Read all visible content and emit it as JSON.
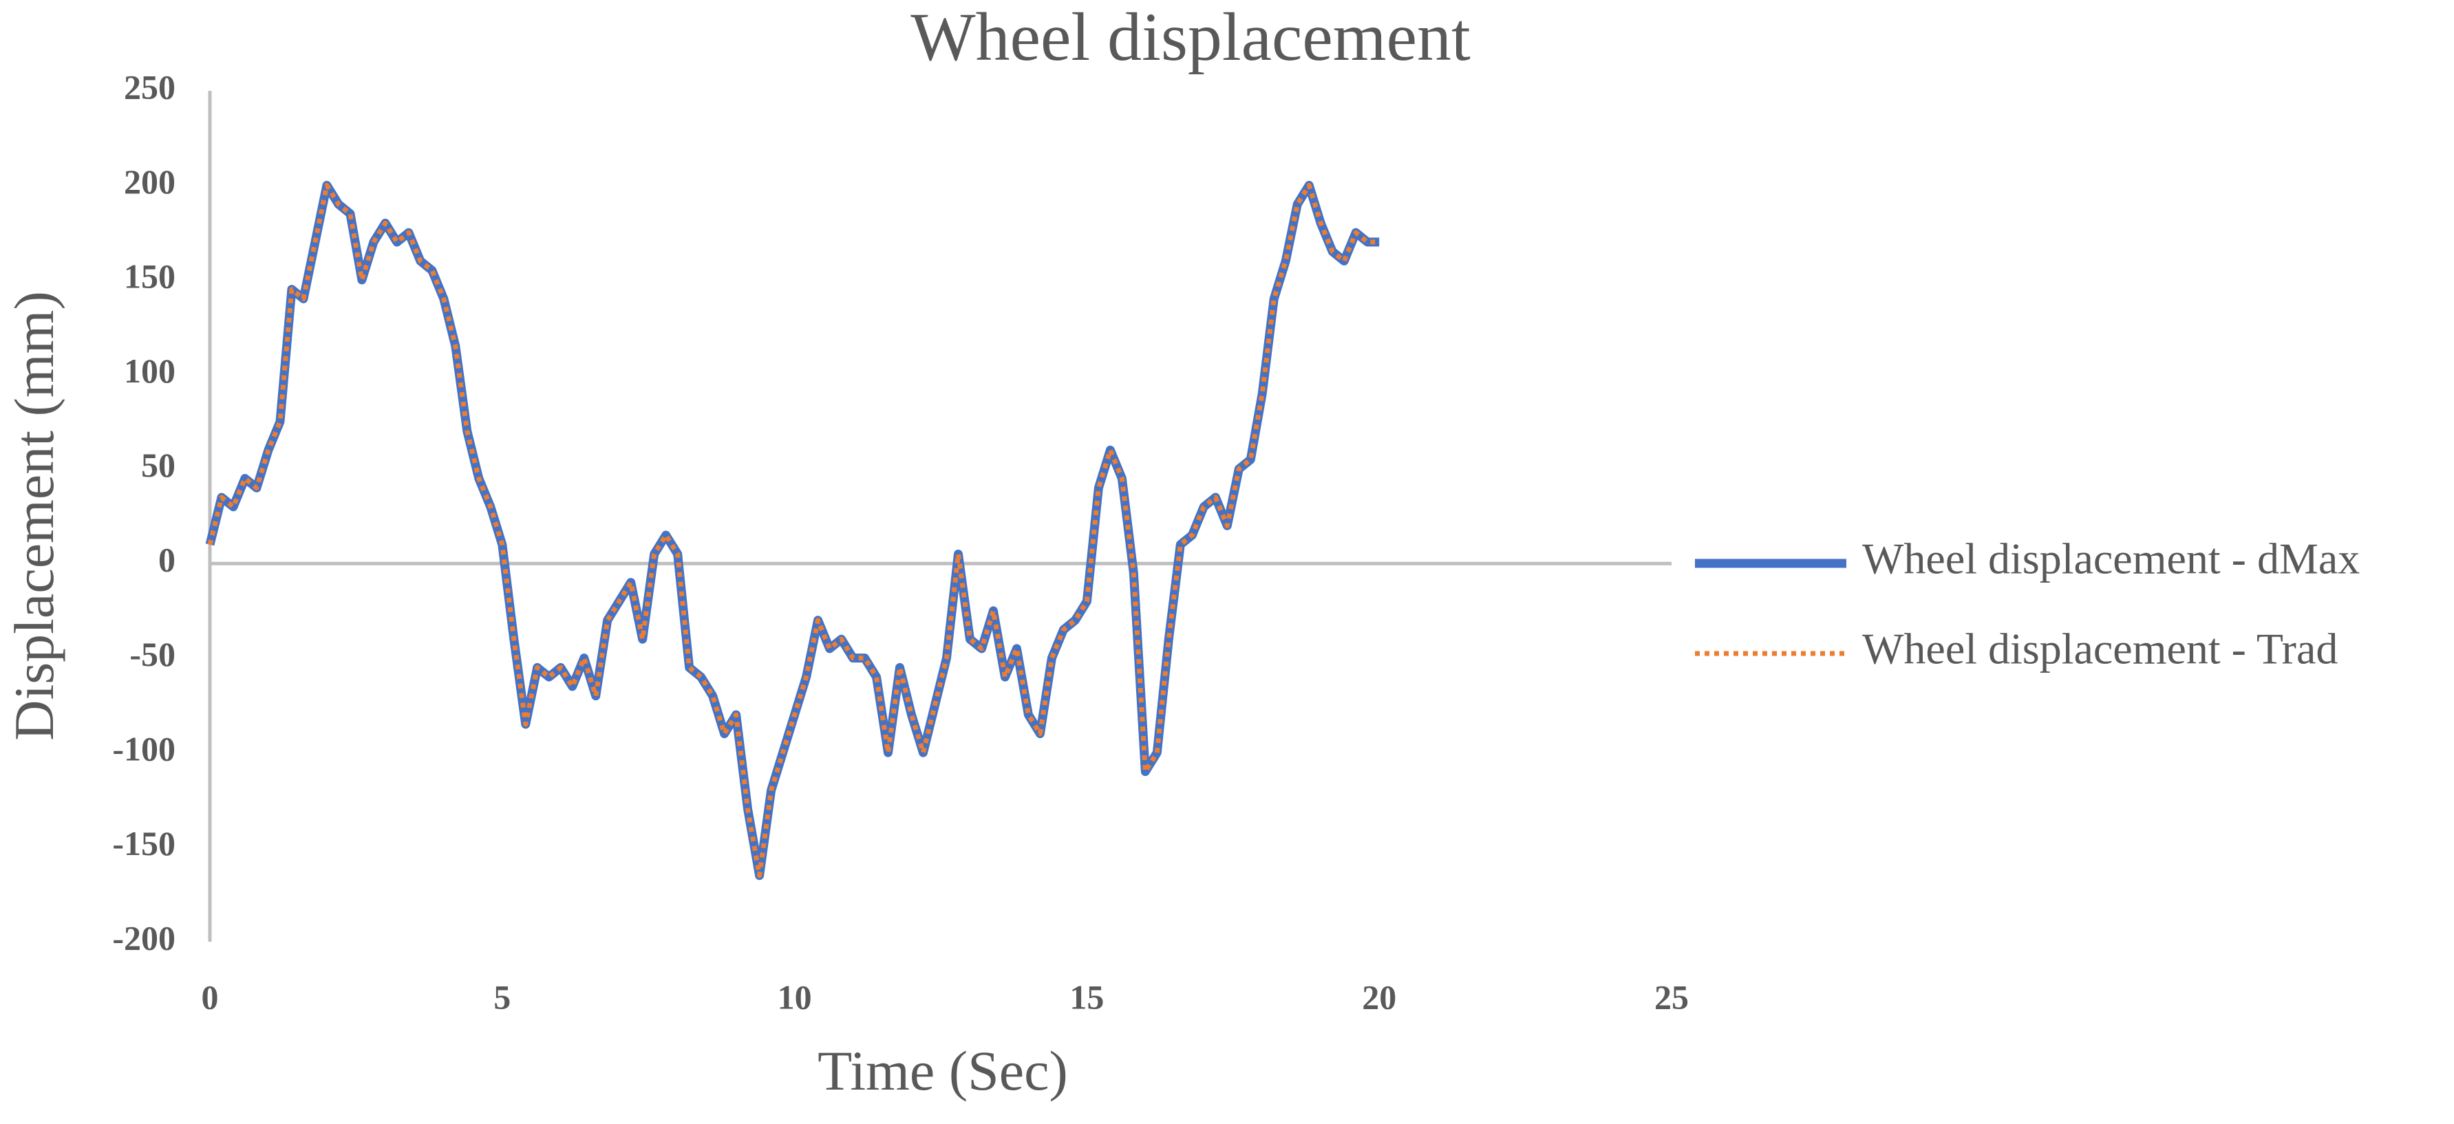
{
  "chart_data": {
    "type": "line",
    "title": "Wheel displacement",
    "x_label": "Time (Sec)",
    "y_label": "Displacement (mm)",
    "x": [
      0,
      0.2,
      0.4,
      0.6,
      0.8,
      1,
      1.2,
      1.4,
      1.6,
      1.8,
      2,
      2.2,
      2.4,
      2.6,
      2.8,
      3,
      3.2,
      3.4,
      3.6,
      3.8,
      4,
      4.2,
      4.4,
      4.6,
      4.8,
      5,
      5.2,
      5.4,
      5.6,
      5.8,
      6,
      6.2,
      6.4,
      6.6,
      6.8,
      7,
      7.2,
      7.4,
      7.6,
      7.8,
      8,
      8.2,
      8.4,
      8.6,
      8.8,
      9,
      9.2,
      9.4,
      9.6,
      9.8,
      10,
      10.2,
      10.4,
      10.6,
      10.8,
      11,
      11.2,
      11.4,
      11.6,
      11.8,
      12,
      12.2,
      12.4,
      12.6,
      12.8,
      13,
      13.2,
      13.4,
      13.6,
      13.8,
      14,
      14.2,
      14.4,
      14.6,
      14.8,
      15,
      15.2,
      15.4,
      15.6,
      15.8,
      16,
      16.2,
      16.4,
      16.6,
      16.8,
      17,
      17.2,
      17.4,
      17.6,
      17.8,
      18,
      18.2,
      18.4,
      18.6,
      18.8,
      19,
      19.2,
      19.4,
      19.6,
      19.8,
      20
    ],
    "series": [
      {
        "name": "Wheel displacement - dMax",
        "color": "#4472c4",
        "dash": false,
        "values": [
          10,
          35,
          30,
          45,
          40,
          60,
          75,
          145,
          140,
          170,
          200,
          190,
          185,
          150,
          170,
          180,
          170,
          175,
          160,
          155,
          140,
          115,
          70,
          45,
          30,
          10,
          -40,
          -85,
          -55,
          -60,
          -55,
          -65,
          -50,
          -70,
          -30,
          -20,
          -10,
          -40,
          5,
          15,
          5,
          -55,
          -60,
          -70,
          -90,
          -80,
          -130,
          -165,
          -120,
          -100,
          -80,
          -60,
          -30,
          -45,
          -40,
          -50,
          -50,
          -60,
          -100,
          -55,
          -80,
          -100,
          -75,
          -50,
          5,
          -40,
          -45,
          -25,
          -60,
          -45,
          -80,
          -90,
          -50,
          -35,
          -30,
          -20,
          40,
          60,
          45,
          -5,
          -110,
          -100,
          -40,
          10,
          15,
          30,
          35,
          20,
          50,
          55,
          90,
          140,
          160,
          190,
          200,
          180,
          165,
          160,
          175,
          170,
          170
        ]
      },
      {
        "name": "Wheel displacement - Trad",
        "color": "#ed7d31",
        "dash": true,
        "values": [
          10,
          35,
          30,
          45,
          40,
          60,
          75,
          145,
          140,
          170,
          200,
          190,
          185,
          150,
          170,
          180,
          170,
          175,
          160,
          155,
          140,
          115,
          70,
          45,
          30,
          10,
          -40,
          -85,
          -55,
          -60,
          -55,
          -65,
          -50,
          -70,
          -30,
          -20,
          -10,
          -40,
          5,
          15,
          5,
          -55,
          -60,
          -70,
          -90,
          -80,
          -130,
          -165,
          -120,
          -100,
          -80,
          -60,
          -30,
          -45,
          -40,
          -50,
          -50,
          -60,
          -100,
          -55,
          -80,
          -100,
          -75,
          -50,
          5,
          -40,
          -45,
          -25,
          -60,
          -45,
          -80,
          -90,
          -50,
          -35,
          -30,
          -20,
          40,
          60,
          45,
          -5,
          -110,
          -100,
          -40,
          10,
          15,
          30,
          35,
          20,
          50,
          55,
          90,
          140,
          160,
          190,
          200,
          180,
          165,
          160,
          175,
          170,
          170
        ]
      }
    ],
    "xlim": [
      0,
      25
    ],
    "xticks": [
      0,
      5,
      10,
      15,
      20,
      25
    ],
    "ylim": [
      -200,
      250
    ],
    "yticks": [
      -200,
      -150,
      -100,
      -50,
      0,
      50,
      100,
      150,
      200,
      250
    ],
    "legend": "right"
  }
}
